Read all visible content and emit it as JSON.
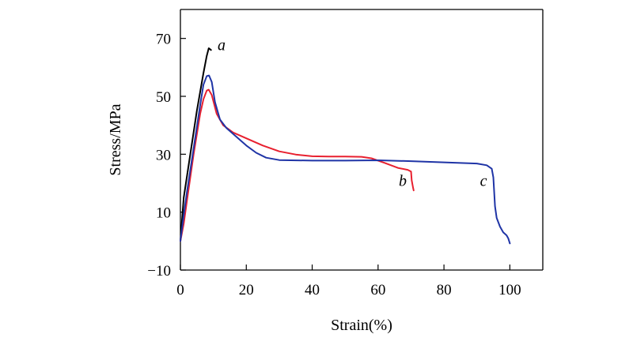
{
  "chart_data": {
    "type": "line",
    "title": "",
    "xlabel": "Strain(%)",
    "ylabel": "Stress/MPa",
    "xlim": [
      0,
      110
    ],
    "ylim": [
      -10,
      80
    ],
    "xticks": [
      0,
      20,
      40,
      60,
      80,
      100
    ],
    "yticks": [
      -10,
      10,
      30,
      50,
      70
    ],
    "ytick_labels": [
      "−10",
      "10",
      "30",
      "50",
      "70"
    ],
    "grid": false,
    "series": [
      {
        "name": "a",
        "color": "#000000",
        "label_at": [
          12.5,
          66
        ],
        "points": [
          [
            0,
            0
          ],
          [
            1,
            15
          ],
          [
            3,
            30
          ],
          [
            5,
            45
          ],
          [
            7,
            58
          ],
          [
            8,
            64
          ],
          [
            8.6,
            66.6
          ],
          [
            9.3,
            66
          ]
        ]
      },
      {
        "name": "b",
        "color": "#e8202f",
        "label_at": [
          67.5,
          19
        ],
        "points": [
          [
            0,
            0
          ],
          [
            1,
            6
          ],
          [
            2,
            14
          ],
          [
            4,
            30
          ],
          [
            6,
            44
          ],
          [
            7,
            49
          ],
          [
            8,
            52
          ],
          [
            8.6,
            52.3
          ],
          [
            9.5,
            50.5
          ],
          [
            11,
            44
          ],
          [
            13,
            40
          ],
          [
            16,
            37.5
          ],
          [
            20,
            35.5
          ],
          [
            25,
            33
          ],
          [
            30,
            31
          ],
          [
            35,
            29.9
          ],
          [
            40,
            29.3
          ],
          [
            45,
            29.2
          ],
          [
            50,
            29.2
          ],
          [
            55,
            29.1
          ],
          [
            58,
            28.6
          ],
          [
            62,
            27
          ],
          [
            66,
            25.3
          ],
          [
            69,
            24.6
          ],
          [
            70,
            24
          ],
          [
            70.2,
            21
          ],
          [
            70.6,
            18.5
          ],
          [
            70.8,
            17.5
          ]
        ]
      },
      {
        "name": "c",
        "color": "#1f34a6",
        "label_at": [
          92,
          19
        ],
        "points": [
          [
            0,
            0
          ],
          [
            1,
            9
          ],
          [
            2,
            17
          ],
          [
            4,
            32
          ],
          [
            6,
            47
          ],
          [
            7,
            54
          ],
          [
            8,
            57
          ],
          [
            8.7,
            57.2
          ],
          [
            9.5,
            55
          ],
          [
            10.5,
            48
          ],
          [
            12,
            42
          ],
          [
            14,
            39
          ],
          [
            17,
            36
          ],
          [
            20,
            33
          ],
          [
            23,
            30.5
          ],
          [
            26,
            28.8
          ],
          [
            30,
            28
          ],
          [
            40,
            27.8
          ],
          [
            50,
            27.8
          ],
          [
            60,
            27.9
          ],
          [
            70,
            27.6
          ],
          [
            80,
            27.2
          ],
          [
            90,
            26.8
          ],
          [
            93,
            26.2
          ],
          [
            94.5,
            25
          ],
          [
            95,
            22
          ],
          [
            95.5,
            12
          ],
          [
            96,
            8
          ],
          [
            97,
            5
          ],
          [
            98,
            3
          ],
          [
            99,
            2
          ],
          [
            99.5,
            1
          ],
          [
            100,
            -0.8
          ]
        ]
      }
    ]
  }
}
